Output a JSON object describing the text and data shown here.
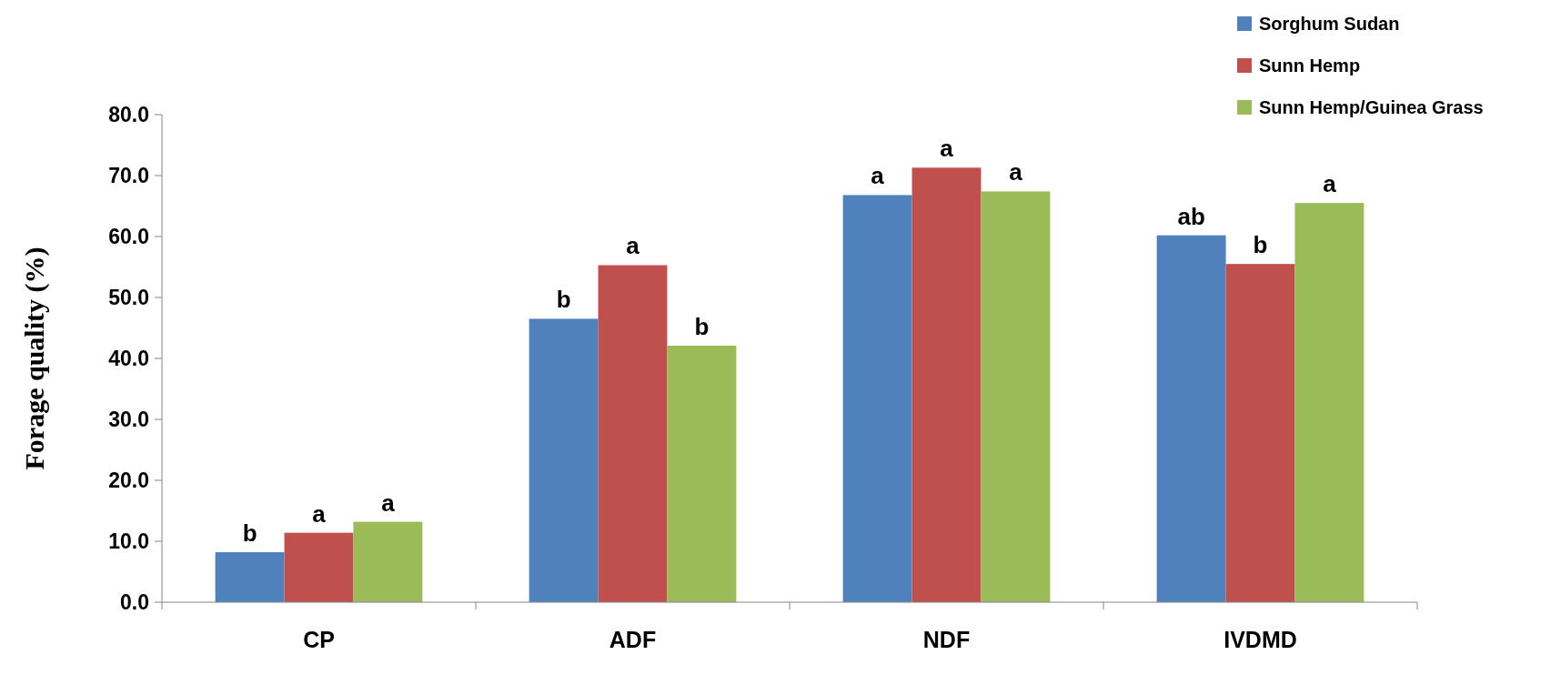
{
  "chart_data": {
    "type": "bar",
    "ylabel": "Forage quality (%)",
    "categories": [
      "CP",
      "ADF",
      "NDF",
      "IVDMD"
    ],
    "series": [
      {
        "name": "Sorghum Sudan",
        "color": "#4f81bd",
        "values": [
          8.2,
          46.5,
          66.8,
          60.2
        ],
        "value_labels": [
          "b",
          "b",
          "a",
          "ab"
        ]
      },
      {
        "name": "Sunn Hemp",
        "color": "#c0504d",
        "values": [
          11.4,
          55.3,
          71.3,
          55.5
        ],
        "value_labels": [
          "a",
          "a",
          "a",
          "b"
        ]
      },
      {
        "name": "Sunn Hemp/Guinea Grass",
        "color": "#9bbb59",
        "values": [
          13.2,
          42.1,
          67.4,
          65.5
        ],
        "value_labels": [
          "a",
          "b",
          "a",
          "a"
        ]
      }
    ],
    "ylim": [
      0,
      80
    ],
    "yticks": [
      {
        "value": 0,
        "label": "0.0"
      },
      {
        "value": 10,
        "label": "10.0"
      },
      {
        "value": 20,
        "label": "20.0"
      },
      {
        "value": 30,
        "label": "30.0"
      },
      {
        "value": 40,
        "label": "40.0"
      },
      {
        "value": 50,
        "label": "50.0"
      },
      {
        "value": 60,
        "label": "60.0"
      },
      {
        "value": 70,
        "label": "70.0"
      },
      {
        "value": 80,
        "label": "80.0"
      }
    ],
    "grid": false,
    "legend": "top right"
  }
}
